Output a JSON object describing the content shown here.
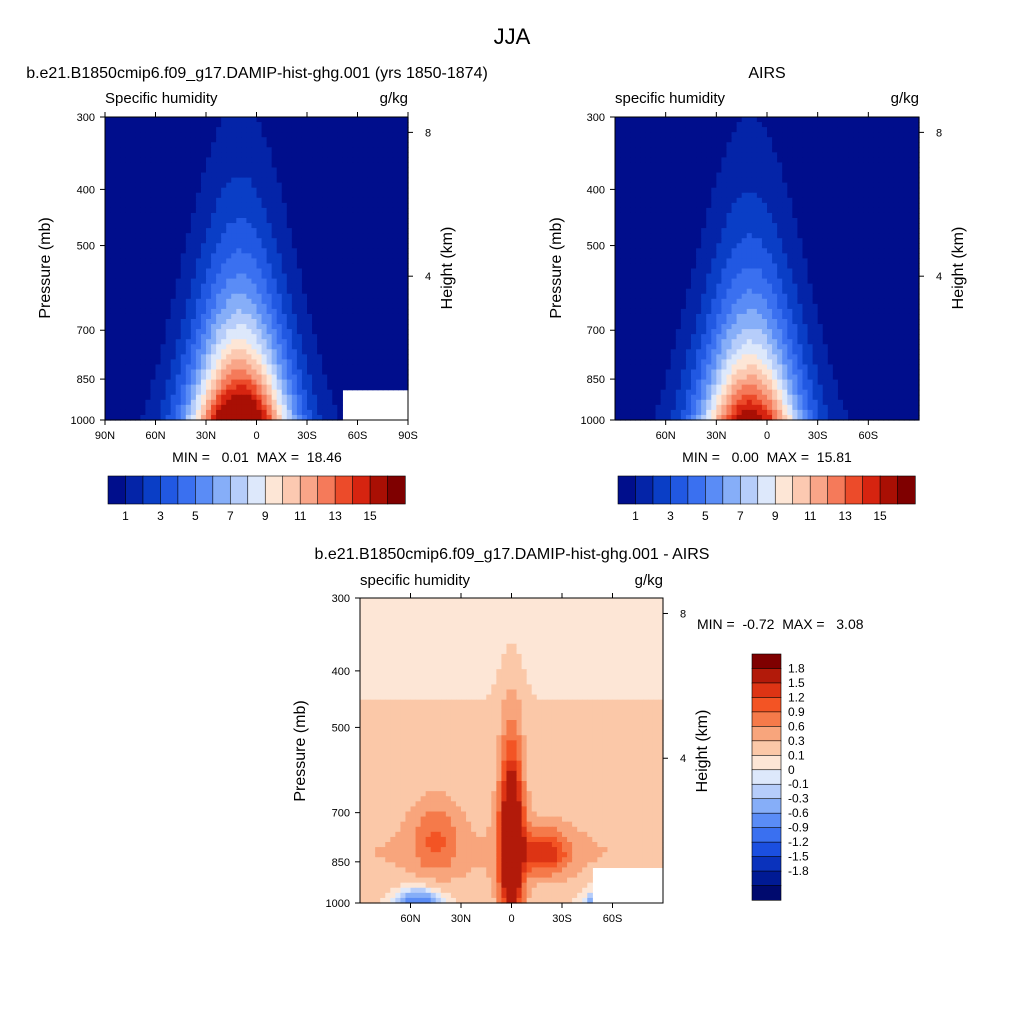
{
  "figure": {
    "title": "JJA"
  },
  "chart_data": [
    {
      "type": "heatmap",
      "title": "b.e21.B1850cmip6.f09_g17.DAMIP-hist-ghg.001 (yrs 1850-1874)",
      "left_label": "Specific humidity",
      "right_label": "g/kg",
      "ylabel": "Pressure (mb)",
      "ylabel_right": "Height (km)",
      "x_ticks": [
        "90N",
        "60N",
        "30N",
        "0",
        "30S",
        "60S",
        "90S"
      ],
      "x_values": [
        90,
        60,
        30,
        0,
        -30,
        -60,
        -90
      ],
      "xlim": [
        90,
        -90
      ],
      "y_ticks": [
        "300",
        "400",
        "500",
        "700",
        "850",
        "1000"
      ],
      "y_values": [
        300,
        400,
        500,
        700,
        850,
        1000
      ],
      "ylim": [
        300,
        1000
      ],
      "y_scale": "log",
      "height_ticks": [
        "8",
        "4"
      ],
      "height_values": [
        8,
        4
      ],
      "stats": "MIN =   0.01  MAX =  18.46",
      "colorbar": {
        "orientation": "horizontal",
        "levels": [
          1,
          2,
          3,
          4,
          5,
          6,
          7,
          8,
          9,
          10,
          11,
          12,
          13,
          14,
          15
        ],
        "labels": [
          "1",
          "3",
          "5",
          "7",
          "9",
          "11",
          "13",
          "15"
        ]
      },
      "field": {
        "peak_value": 18.46,
        "peak_lat": 10,
        "moist_top_pressure": 350,
        "missing_region": {
          "lat": [
            -52,
            -90
          ],
          "pressure": [
            880,
            1000
          ]
        }
      }
    },
    {
      "type": "heatmap",
      "title": "AIRS",
      "left_label": "specific humidity",
      "right_label": "g/kg",
      "ylabel": "Pressure (mb)",
      "ylabel_right": "Height (km)",
      "x_ticks": [
        "60N",
        "30N",
        "0",
        "30S",
        "60S"
      ],
      "x_values": [
        60,
        30,
        0,
        -30,
        -60
      ],
      "xlim": [
        90,
        -90
      ],
      "y_ticks": [
        "300",
        "400",
        "500",
        "700",
        "850",
        "1000"
      ],
      "y_values": [
        300,
        400,
        500,
        700,
        850,
        1000
      ],
      "ylim": [
        300,
        1000
      ],
      "y_scale": "log",
      "height_ticks": [
        "8",
        "4"
      ],
      "height_values": [
        8,
        4
      ],
      "stats": "MIN =   0.00  MAX =  15.81",
      "colorbar": {
        "orientation": "horizontal",
        "levels": [
          1,
          2,
          3,
          4,
          5,
          6,
          7,
          8,
          9,
          10,
          11,
          12,
          13,
          14,
          15
        ],
        "labels": [
          "1",
          "3",
          "5",
          "7",
          "9",
          "11",
          "13",
          "15"
        ]
      },
      "field": {
        "peak_value": 15.81,
        "peak_lat": 10,
        "moist_top_pressure": 420
      }
    },
    {
      "type": "heatmap",
      "title": "b.e21.B1850cmip6.f09_g17.DAMIP-hist-ghg.001 - AIRS",
      "left_label": "specific humidity",
      "right_label": "g/kg",
      "ylabel": "Pressure (mb)",
      "ylabel_right": "Height (km)",
      "x_ticks": [
        "60N",
        "30N",
        "0",
        "30S",
        "60S"
      ],
      "x_values": [
        60,
        30,
        0,
        -30,
        -60
      ],
      "xlim": [
        90,
        -90
      ],
      "y_ticks": [
        "300",
        "400",
        "500",
        "700",
        "850",
        "1000"
      ],
      "y_values": [
        300,
        400,
        500,
        700,
        850,
        1000
      ],
      "ylim": [
        300,
        1000
      ],
      "y_scale": "log",
      "height_ticks": [
        "8",
        "4"
      ],
      "height_values": [
        8,
        4
      ],
      "stats": "MIN =  -0.72  MAX =   3.08",
      "colorbar": {
        "orientation": "vertical",
        "levels": [
          1.8,
          1.5,
          1.2,
          0.9,
          0.6,
          0.3,
          0.1,
          0,
          -0.1,
          -0.3,
          -0.6,
          -0.9,
          -1.2,
          -1.5,
          -1.8
        ],
        "labels": [
          "1.8",
          "1.5",
          "1.2",
          "0.9",
          "0.6",
          "0.3",
          "0.1",
          "0",
          "-0.1",
          "-0.3",
          "-0.6",
          "-0.9",
          "-1.2",
          "-1.5",
          "-1.8"
        ]
      },
      "field": {
        "peak_value": 3.08,
        "peak_lat": 0,
        "min_value": -0.72,
        "missing_region": {
          "lat": [
            -48,
            -90
          ],
          "pressure": [
            870,
            1000
          ]
        }
      }
    }
  ],
  "palettes": {
    "absolute": [
      "#000e8c",
      "#0424a8",
      "#0a3ec6",
      "#2158e2",
      "#3a70f0",
      "#5a8cf6",
      "#86aef8",
      "#b6cdfa",
      "#dde8fb",
      "#fde6d6",
      "#fcc9b1",
      "#f9a588",
      "#f57a5a",
      "#ec4b2a",
      "#d62410",
      "#a90f04",
      "#7f0000"
    ],
    "difference": [
      "#7f0000",
      "#b21a0a",
      "#dd3414",
      "#f35424",
      "#f57a4a",
      "#f8a57c",
      "#fbc8a8",
      "#fde6d6",
      "#dde8fb",
      "#b6cdfa",
      "#86aef8",
      "#5a8cf6",
      "#3a70f0",
      "#1b4fe0",
      "#0a32bc",
      "#001a94",
      "#000a6e"
    ]
  }
}
